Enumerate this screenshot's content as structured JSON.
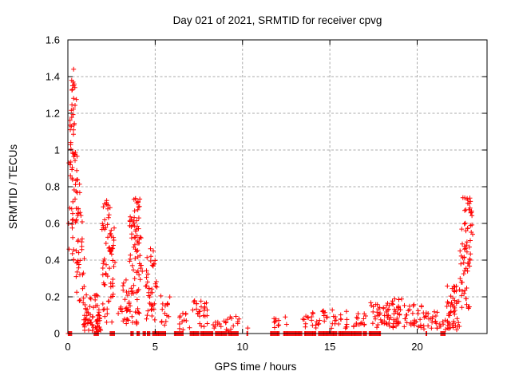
{
  "chart_data": {
    "type": "scatter",
    "title": "Day 021 of 2021, SRMTID for receiver cpvg",
    "xlabel": "GPS time / hours",
    "ylabel": "SRMTID / TECUs",
    "xlim": [
      0,
      24
    ],
    "ylim": [
      0,
      1.6
    ],
    "xticks": [
      0,
      5,
      10,
      15,
      20
    ],
    "xtick_labels": [
      "0",
      "5",
      "10",
      "15",
      "20"
    ],
    "yticks": [
      0,
      0.2,
      0.4,
      0.6,
      0.8,
      1,
      1.2,
      1.4,
      1.6
    ],
    "ytick_labels": [
      "0",
      "0.2",
      "0.4",
      "0.6",
      "0.8",
      "1",
      "1.2",
      "1.4",
      "1.6"
    ],
    "grid": "dashed",
    "legend": "none",
    "marker": "plus",
    "marker_color": "#ff0000",
    "grid_color": "#ababab",
    "border_color": "#000000",
    "seed": 7,
    "points": [
      [
        0.33,
        1.44
      ],
      [
        0.22,
        1.38
      ],
      [
        0.3,
        1.37
      ],
      [
        0.36,
        1.36
      ],
      [
        0.27,
        1.35
      ],
      [
        0.4,
        1.34
      ],
      [
        0.25,
        1.33
      ],
      [
        0.34,
        1.35
      ],
      [
        0.04,
        0.6
      ],
      [
        0.07,
        0.46
      ],
      [
        0.06,
        0.93
      ],
      [
        10.3,
        0.03
      ],
      [
        12.45,
        0.09
      ],
      [
        12.52,
        0.05
      ],
      [
        22.62,
        0.74
      ],
      [
        23.05,
        0.72
      ],
      [
        22.9,
        0.71
      ],
      [
        23.1,
        0.66
      ]
    ],
    "dense_clusters": [
      {
        "x0": 0.12,
        "x1": 0.5,
        "y0": 1.15,
        "y1": 1.33,
        "n": 10
      },
      {
        "x0": 0.1,
        "x1": 0.5,
        "y0": 0.98,
        "y1": 1.15,
        "n": 12
      },
      {
        "x0": 0.08,
        "x1": 0.55,
        "y0": 0.84,
        "y1": 0.99,
        "n": 14
      },
      {
        "x0": 0.1,
        "x1": 0.7,
        "y0": 0.68,
        "y1": 0.84,
        "n": 16
      },
      {
        "x0": 0.12,
        "x1": 0.85,
        "y0": 0.54,
        "y1": 0.68,
        "n": 16
      },
      {
        "x0": 0.2,
        "x1": 0.95,
        "y0": 0.4,
        "y1": 0.54,
        "n": 14
      },
      {
        "x0": 0.3,
        "x1": 1.0,
        "y0": 0.26,
        "y1": 0.4,
        "n": 11
      },
      {
        "x0": 0.45,
        "x1": 1.1,
        "y0": 0.15,
        "y1": 0.26,
        "n": 8
      },
      {
        "x0": 0.85,
        "x1": 1.9,
        "y0": 0.01,
        "y1": 0.1,
        "n": 48
      },
      {
        "x0": 0.95,
        "x1": 1.85,
        "y0": 0.1,
        "y1": 0.16,
        "n": 14
      },
      {
        "x0": 1.1,
        "x1": 1.8,
        "y0": 0.16,
        "y1": 0.23,
        "n": 7
      },
      {
        "x0": 1.95,
        "x1": 2.6,
        "y0": 0.64,
        "y1": 0.73,
        "n": 9
      },
      {
        "x0": 1.95,
        "x1": 2.65,
        "y0": 0.5,
        "y1": 0.64,
        "n": 18
      },
      {
        "x0": 1.95,
        "x1": 2.7,
        "y0": 0.36,
        "y1": 0.5,
        "n": 18
      },
      {
        "x0": 2.0,
        "x1": 2.75,
        "y0": 0.22,
        "y1": 0.36,
        "n": 14
      },
      {
        "x0": 2.0,
        "x1": 2.6,
        "y0": 0.06,
        "y1": 0.22,
        "n": 13
      },
      {
        "x0": 2.85,
        "x1": 3.4,
        "y0": 0.04,
        "y1": 0.16,
        "n": 10
      },
      {
        "x0": 3.15,
        "x1": 3.4,
        "y0": 0.18,
        "y1": 0.32,
        "n": 5
      },
      {
        "x0": 3.6,
        "x1": 4.15,
        "y0": 0.64,
        "y1": 0.74,
        "n": 11
      },
      {
        "x0": 3.5,
        "x1": 4.2,
        "y0": 0.5,
        "y1": 0.64,
        "n": 26
      },
      {
        "x0": 3.5,
        "x1": 4.25,
        "y0": 0.36,
        "y1": 0.5,
        "n": 17
      },
      {
        "x0": 3.55,
        "x1": 4.3,
        "y0": 0.24,
        "y1": 0.36,
        "n": 10
      },
      {
        "x0": 3.3,
        "x1": 4.1,
        "y0": 0.05,
        "y1": 0.24,
        "n": 30
      },
      {
        "x0": 4.5,
        "x1": 5.0,
        "y0": 0.3,
        "y1": 0.47,
        "n": 13
      },
      {
        "x0": 4.45,
        "x1": 5.1,
        "y0": 0.07,
        "y1": 0.3,
        "n": 28
      },
      {
        "x0": 5.3,
        "x1": 6.0,
        "y0": 0.03,
        "y1": 0.21,
        "n": 15
      },
      {
        "x0": 6.3,
        "x1": 7.05,
        "y0": 0.02,
        "y1": 0.11,
        "n": 12
      },
      {
        "x0": 7.1,
        "x1": 8.05,
        "y0": 0.03,
        "y1": 0.18,
        "n": 26
      },
      {
        "x0": 8.15,
        "x1": 9.8,
        "y0": 0.015,
        "y1": 0.1,
        "n": 22
      },
      {
        "x0": 11.75,
        "x1": 12.15,
        "y0": 0.03,
        "y1": 0.09,
        "n": 8
      },
      {
        "x0": 13.4,
        "x1": 14.45,
        "y0": 0.02,
        "y1": 0.12,
        "n": 18
      },
      {
        "x0": 14.55,
        "x1": 16.0,
        "y0": 0.02,
        "y1": 0.13,
        "n": 26
      },
      {
        "x0": 16.35,
        "x1": 17.15,
        "y0": 0.03,
        "y1": 0.12,
        "n": 15
      },
      {
        "x0": 17.2,
        "x1": 18.1,
        "y0": 0.03,
        "y1": 0.17,
        "n": 22
      },
      {
        "x0": 18.1,
        "x1": 19.25,
        "y0": 0.03,
        "y1": 0.2,
        "n": 48
      },
      {
        "x0": 19.25,
        "x1": 20.35,
        "y0": 0.02,
        "y1": 0.16,
        "n": 32
      },
      {
        "x0": 20.35,
        "x1": 21.3,
        "y0": 0.02,
        "y1": 0.12,
        "n": 26
      },
      {
        "x0": 21.35,
        "x1": 21.8,
        "y0": 0.02,
        "y1": 0.08,
        "n": 7
      },
      {
        "x0": 21.7,
        "x1": 22.45,
        "y0": 0.02,
        "y1": 0.26,
        "n": 45
      },
      {
        "x0": 22.4,
        "x1": 23.0,
        "y0": 0.11,
        "y1": 0.31,
        "n": 16
      },
      {
        "x0": 22.4,
        "x1": 23.15,
        "y0": 0.31,
        "y1": 0.45,
        "n": 18
      },
      {
        "x0": 22.45,
        "x1": 23.2,
        "y0": 0.45,
        "y1": 0.53,
        "n": 8
      },
      {
        "x0": 22.5,
        "x1": 23.2,
        "y0": 0.54,
        "y1": 0.62,
        "n": 10
      },
      {
        "x0": 22.55,
        "x1": 23.2,
        "y0": 0.64,
        "y1": 0.74,
        "n": 12
      }
    ],
    "zero_band_step": 0.05,
    "zero_bands": [
      [
        0.02,
        0.22
      ],
      [
        1.5,
        1.75
      ],
      [
        2.42,
        2.68
      ],
      [
        3.6,
        3.75
      ],
      [
        3.95,
        4.1
      ],
      [
        4.3,
        4.45
      ],
      [
        4.55,
        4.7
      ],
      [
        4.85,
        5.6
      ],
      [
        6.1,
        6.6
      ],
      [
        7.0,
        7.5
      ],
      [
        7.6,
        8.3
      ],
      [
        8.45,
        9.1
      ],
      [
        9.2,
        9.75
      ],
      [
        10.25,
        10.3
      ],
      [
        11.6,
        12.1
      ],
      [
        12.35,
        13.4
      ],
      [
        13.55,
        14.2
      ],
      [
        14.35,
        15.4
      ],
      [
        15.5,
        16.8
      ],
      [
        16.9,
        17.1
      ],
      [
        17.25,
        17.9
      ],
      [
        20.5,
        20.55
      ],
      [
        21.35,
        21.6
      ]
    ]
  }
}
